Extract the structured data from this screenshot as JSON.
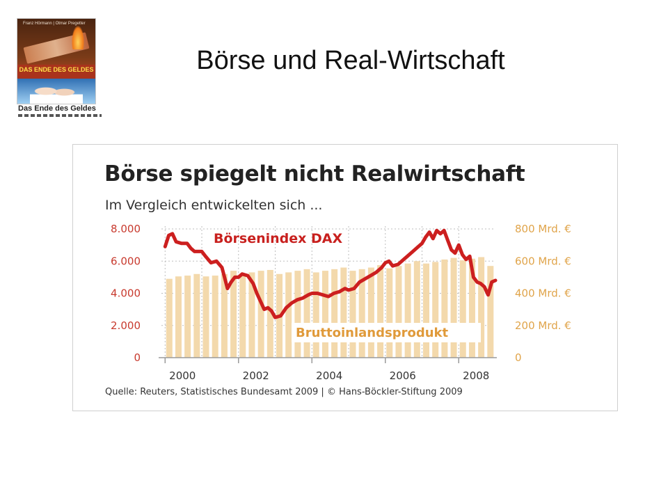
{
  "slide": {
    "title": "Börse und Real-Wirtschaft"
  },
  "book": {
    "authors": "Franz Hörmann | Otmar Pregetter",
    "cover_title": "DAS ENDE DES GELDES",
    "caption": "Das Ende des Geldes"
  },
  "colors": {
    "dax_line": "#cc1f1f",
    "gdp_bars": "#f3d9ac",
    "left_axis": "#c83a2e",
    "right_axis": "#e0a44a",
    "grid": "#bdbdbd"
  },
  "chart_data": {
    "type": "bar",
    "title": "Börse spiegelt nicht Realwirtschaft",
    "subtitle": "Im Vergleich entwickelten sich ...",
    "source": "Quelle: Reuters, Statistisches Bundesamt 2009 | © Hans-Böckler-Stiftung 2009",
    "x_ticks": [
      "2000",
      "2002",
      "2004",
      "2006",
      "2008"
    ],
    "x_range": [
      1999.9,
      2009.0
    ],
    "y_left": {
      "ylim": [
        0,
        8000
      ],
      "ticks": [
        "0",
        "2.000",
        "4.000",
        "6.000",
        "8.000"
      ],
      "tick_values": [
        0,
        2000,
        4000,
        6000,
        8000
      ]
    },
    "y_right": {
      "ylim": [
        0,
        800
      ],
      "ticks": [
        "0",
        "200 Mrd. €",
        "400 Mrd. €",
        "600 Mrd. €",
        "800 Mrd. €"
      ],
      "tick_values": [
        0,
        200,
        400,
        600,
        800
      ]
    },
    "grid": true,
    "series": [
      {
        "name": "Bruttoinlandsprodukt",
        "type": "bar",
        "axis": "right",
        "x": [
          2000.0,
          2000.25,
          2000.5,
          2000.75,
          2001.0,
          2001.25,
          2001.5,
          2001.75,
          2002.0,
          2002.25,
          2002.5,
          2002.75,
          2003.0,
          2003.25,
          2003.5,
          2003.75,
          2004.0,
          2004.25,
          2004.5,
          2004.75,
          2005.0,
          2005.25,
          2005.5,
          2005.75,
          2006.0,
          2006.25,
          2006.5,
          2006.75,
          2007.0,
          2007.25,
          2007.5,
          2007.75,
          2008.0,
          2008.25,
          2008.5,
          2008.75
        ],
        "values": [
          490,
          505,
          510,
          520,
          505,
          510,
          520,
          540,
          520,
          530,
          540,
          545,
          520,
          530,
          540,
          550,
          530,
          540,
          550,
          560,
          540,
          550,
          560,
          575,
          555,
          570,
          585,
          600,
          585,
          595,
          610,
          620,
          605,
          615,
          625,
          570
        ]
      },
      {
        "name": "Börsenindex DAX",
        "type": "line",
        "axis": "left",
        "x": [
          2000.0,
          2000.1,
          2000.2,
          2000.3,
          2000.45,
          2000.6,
          2000.7,
          2000.8,
          2001.0,
          2001.1,
          2001.25,
          2001.4,
          2001.55,
          2001.7,
          2001.8,
          2001.9,
          2002.0,
          2002.1,
          2002.25,
          2002.4,
          2002.5,
          2002.6,
          2002.7,
          2002.8,
          2002.9,
          2003.0,
          2003.15,
          2003.3,
          2003.45,
          2003.6,
          2003.75,
          2003.9,
          2004.0,
          2004.15,
          2004.3,
          2004.45,
          2004.6,
          2004.75,
          2004.9,
          2005.0,
          2005.15,
          2005.3,
          2005.45,
          2005.6,
          2005.75,
          2005.9,
          2006.0,
          2006.1,
          2006.2,
          2006.35,
          2006.5,
          2006.6,
          2006.75,
          2006.9,
          2007.0,
          2007.1,
          2007.2,
          2007.3,
          2007.4,
          2007.5,
          2007.6,
          2007.7,
          2007.8,
          2007.9,
          2008.0,
          2008.1,
          2008.2,
          2008.3,
          2008.4,
          2008.5,
          2008.6,
          2008.7,
          2008.8,
          2008.9,
          2009.0
        ],
        "values": [
          6900,
          7600,
          7700,
          7200,
          7100,
          7100,
          6800,
          6600,
          6600,
          6300,
          5900,
          6000,
          5600,
          4300,
          4700,
          5000,
          5000,
          5200,
          5100,
          4600,
          4000,
          3500,
          3000,
          3100,
          2900,
          2500,
          2600,
          3100,
          3400,
          3600,
          3700,
          3900,
          4000,
          4000,
          3900,
          3800,
          4000,
          4100,
          4300,
          4200,
          4300,
          4700,
          4900,
          5100,
          5300,
          5600,
          5900,
          6000,
          5700,
          5800,
          6100,
          6300,
          6600,
          6900,
          7100,
          7500,
          7800,
          7400,
          7900,
          7700,
          7900,
          7300,
          6700,
          6500,
          7000,
          6400,
          6100,
          6300,
          5000,
          4700,
          4600,
          4400,
          3900,
          4700,
          4800
        ]
      }
    ],
    "annotations": [
      {
        "text": "Börsenindex DAX",
        "series": "Börsenindex DAX"
      },
      {
        "text": "Bruttoinlandsprodukt",
        "series": "Bruttoinlandsprodukt"
      }
    ]
  }
}
